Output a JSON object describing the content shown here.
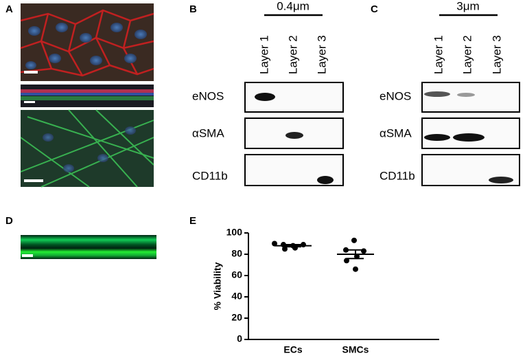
{
  "panels": {
    "a": "A",
    "b": "B",
    "c": "C",
    "d": "D",
    "e": "E"
  },
  "blot_b": {
    "scale": "0.4μm",
    "lanes": [
      "Layer 1",
      "Layer 2",
      "Layer 3"
    ],
    "rows": [
      "eNOS",
      "αSMA",
      "CD11b"
    ]
  },
  "blot_c": {
    "scale": "3μm",
    "lanes": [
      "Layer 1",
      "Layer 2",
      "Layer 3"
    ],
    "rows": [
      "eNOS",
      "αSMA",
      "CD11b"
    ]
  },
  "chart_data": {
    "type": "dotplot",
    "categories": [
      "ECs",
      "SMCs"
    ],
    "values": [
      [
        90,
        89,
        88,
        89,
        85,
        86
      ],
      [
        93,
        84,
        83,
        78,
        74,
        66
      ]
    ],
    "means": [
      88,
      80
    ],
    "errors": [
      1,
      4
    ],
    "ylabel": "% Viability",
    "ylim": [
      0,
      100
    ],
    "yticks": [
      0,
      20,
      40,
      60,
      80,
      100
    ],
    "color": "#000000"
  }
}
